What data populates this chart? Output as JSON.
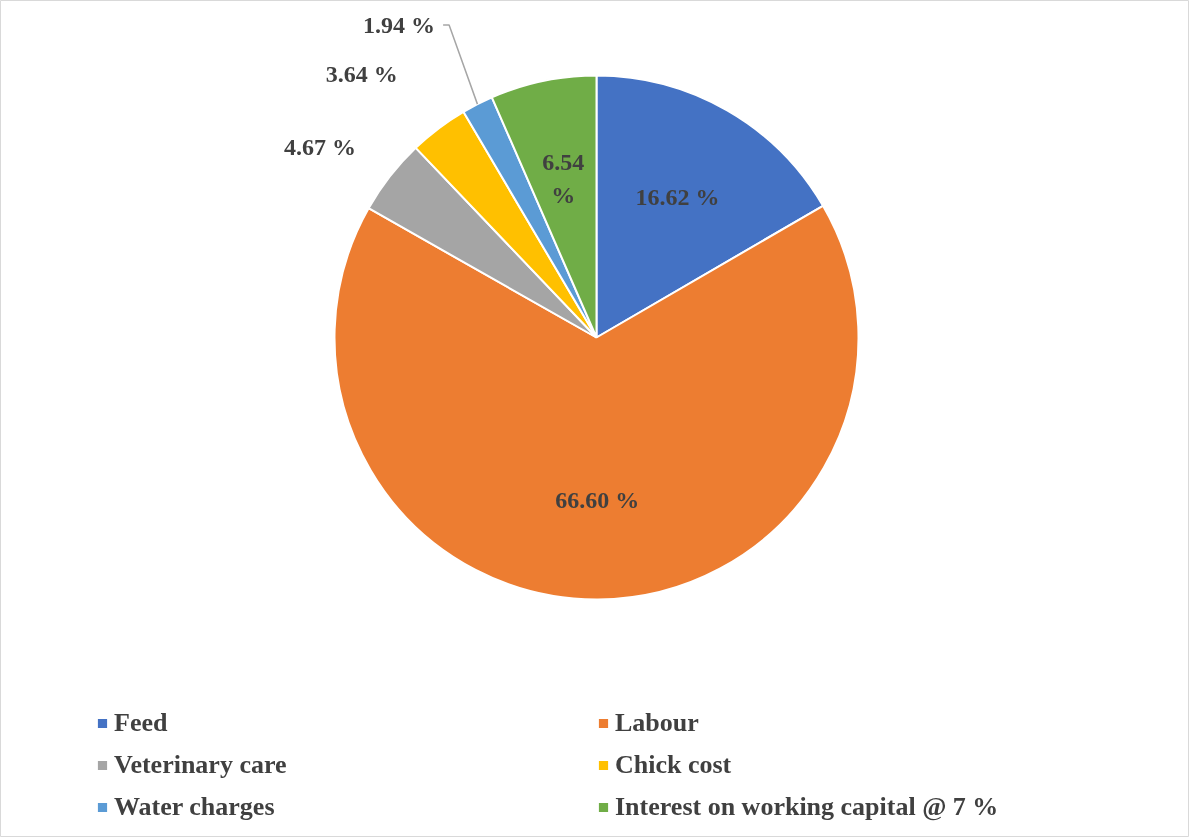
{
  "chart_data": {
    "type": "pie",
    "categories": [
      "Feed",
      "Labour",
      "Veterinary care",
      "Chick cost",
      "Water charges",
      "Interest on working capital @ 7 %"
    ],
    "values": [
      16.62,
      66.6,
      4.67,
      3.64,
      1.94,
      6.54
    ],
    "colors": [
      "#4472c4",
      "#ed7d31",
      "#a5a5a5",
      "#ffc000",
      "#5b9bd5",
      "#70ad47"
    ],
    "value_labels": [
      "16.62 %",
      "66.60 %",
      "4.67 %",
      "3.64 %",
      "1.94 %",
      "6.54 %"
    ],
    "legend": "bottom"
  }
}
